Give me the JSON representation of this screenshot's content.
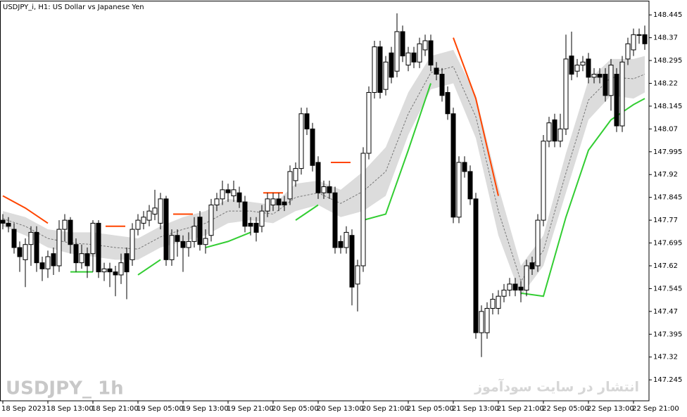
{
  "chart_data": {
    "type": "candlestick",
    "title": "USDJPY_i, H1:  US Dollar vs Japanese Yen",
    "watermark": "USDJPY_ 1h",
    "site_watermark": "انتشار در سایت سودآموز",
    "categories": [
      "18 Sep 2023",
      null,
      null,
      null,
      null,
      null,
      null,
      null,
      "18 Sep 13:00",
      null,
      null,
      null,
      null,
      null,
      null,
      null,
      "18 Sep 21:00",
      null,
      null,
      null,
      null,
      null,
      null,
      null,
      "19 Sep 05:00",
      null,
      null,
      null,
      null,
      null,
      null,
      null,
      "19 Sep 13:00",
      null,
      null,
      null,
      null,
      null,
      null,
      null,
      "19 Sep 21:00",
      null,
      null,
      null,
      null,
      null,
      null,
      null,
      "20 Sep 05:00",
      null,
      null,
      null,
      null,
      null,
      null,
      null,
      "20 Sep 13:00",
      null,
      null,
      null,
      null,
      null,
      null,
      null,
      "20 Sep 21:00",
      null,
      null,
      null,
      null,
      null,
      null,
      null,
      "21 Sep 05:00",
      null,
      null,
      null,
      null,
      null,
      null,
      null,
      "21 Sep 13:00",
      null,
      null,
      null,
      null,
      null,
      null,
      null,
      "21 Sep 21:00",
      null,
      null,
      null,
      null,
      null,
      null,
      null,
      "22 Sep 05:00",
      null,
      null,
      null,
      null,
      null,
      null,
      null,
      "22 Sep 13:00",
      null,
      null,
      null,
      null,
      null,
      null,
      null,
      "22 Sep 21:00",
      null,
      null
    ],
    "open": [
      147.77,
      147.76,
      147.74,
      147.68,
      147.64,
      147.69,
      147.73,
      147.63,
      147.61,
      147.66,
      147.62,
      147.74,
      147.77,
      147.69,
      147.63,
      147.66,
      147.66,
      147.76,
      147.6,
      147.61,
      147.6,
      147.59,
      147.66,
      147.64,
      147.74,
      147.76,
      147.77,
      147.79,
      147.76,
      147.84,
      147.64,
      147.72,
      147.7,
      147.68,
      147.7,
      147.78,
      147.69,
      147.72,
      147.82,
      147.84,
      147.87,
      147.85,
      147.86,
      147.83,
      147.76,
      147.76,
      147.75,
      147.8,
      147.82,
      147.84,
      147.83,
      147.84,
      147.9,
      147.94,
      148.12,
      148.07,
      147.96,
      147.86,
      147.88,
      147.86,
      147.7,
      147.68,
      147.72,
      147.56,
      147.62,
      147.99,
      148.19,
      148.34,
      148.2,
      148.32,
      148.26,
      148.39,
      148.28,
      148.32,
      148.29,
      148.33,
      148.36,
      148.27,
      148.25,
      148.19,
      148.12,
      147.78,
      147.96,
      147.93,
      147.84,
      147.4,
      147.4,
      147.48,
      147.48,
      147.52,
      147.54,
      147.56,
      147.55,
      147.54,
      147.63,
      147.62,
      147.77,
      148.03,
      148.1,
      148.03,
      148.07,
      148.31,
      148.26,
      148.28,
      148.3,
      148.24,
      148.25,
      148.25,
      148.18,
      148.25,
      148.08,
      148.3,
      148.33,
      148.38,
      148.38
    ],
    "high": [
      147.79,
      147.78,
      147.76,
      147.7,
      147.71,
      147.75,
      147.75,
      147.65,
      147.67,
      147.68,
      147.77,
      147.79,
      147.78,
      147.71,
      147.69,
      147.68,
      147.77,
      147.77,
      147.63,
      147.63,
      147.62,
      147.66,
      147.68,
      147.76,
      147.79,
      147.8,
      147.82,
      147.87,
      147.86,
      147.85,
      147.74,
      147.74,
      147.72,
      147.73,
      147.78,
      147.8,
      147.74,
      147.84,
      147.86,
      147.9,
      147.89,
      147.9,
      147.88,
      147.85,
      147.78,
      147.78,
      147.82,
      147.86,
      147.86,
      147.86,
      147.85,
      147.95,
      147.96,
      148.14,
      148.14,
      148.09,
      147.98,
      147.9,
      147.9,
      147.88,
      147.72,
      147.75,
      147.74,
      147.64,
      148.01,
      148.21,
      148.36,
      148.36,
      148.31,
      148.34,
      148.45,
      148.41,
      148.34,
      148.34,
      148.37,
      148.38,
      148.38,
      148.29,
      148.27,
      148.21,
      148.14,
      147.98,
      147.98,
      147.95,
      147.86,
      147.49,
      147.5,
      147.53,
      147.54,
      147.56,
      147.58,
      147.58,
      147.57,
      147.64,
      147.65,
      147.79,
      148.05,
      148.11,
      148.12,
      148.12,
      148.38,
      148.39,
      148.3,
      148.31,
      148.32,
      148.27,
      148.27,
      148.27,
      148.3,
      148.27,
      148.31,
      148.37,
      148.4,
      148.4,
      148.41
    ],
    "low": [
      147.74,
      147.73,
      147.66,
      147.6,
      147.55,
      147.62,
      147.6,
      147.57,
      147.58,
      147.59,
      147.6,
      147.7,
      147.66,
      147.6,
      147.61,
      147.58,
      147.6,
      147.58,
      147.57,
      147.55,
      147.52,
      147.56,
      147.51,
      147.62,
      147.72,
      147.74,
      147.75,
      147.77,
      147.74,
      147.62,
      147.62,
      147.65,
      147.6,
      147.65,
      147.68,
      147.67,
      147.66,
      147.7,
      147.8,
      147.82,
      147.83,
      147.83,
      147.81,
      147.73,
      147.72,
      147.7,
      147.73,
      147.78,
      147.8,
      147.8,
      147.8,
      147.82,
      147.88,
      147.92,
      148.05,
      147.93,
      147.84,
      147.84,
      147.84,
      147.66,
      147.66,
      147.66,
      147.49,
      147.47,
      147.6,
      147.97,
      148.17,
      148.17,
      148.18,
      148.22,
      148.24,
      148.29,
      148.26,
      148.27,
      148.27,
      148.31,
      148.26,
      148.23,
      148.16,
      148.1,
      147.76,
      147.76,
      147.91,
      147.82,
      147.38,
      147.32,
      147.38,
      147.46,
      147.46,
      147.5,
      147.52,
      147.52,
      147.5,
      147.52,
      147.59,
      147.6,
      147.75,
      148.01,
      148.01,
      148.01,
      148.05,
      148.23,
      148.24,
      148.26,
      148.22,
      148.22,
      148.22,
      148.16,
      148.13,
      148.06,
      148.06,
      148.28,
      148.31,
      148.35,
      148.33
    ],
    "close": [
      147.76,
      147.75,
      147.68,
      147.65,
      147.69,
      147.73,
      147.63,
      147.61,
      147.65,
      147.62,
      147.74,
      147.77,
      147.69,
      147.63,
      147.66,
      147.62,
      147.76,
      147.6,
      147.61,
      147.6,
      147.59,
      147.63,
      147.6,
      147.74,
      147.77,
      147.78,
      147.8,
      147.81,
      147.84,
      147.64,
      147.72,
      147.7,
      147.68,
      147.7,
      147.75,
      147.69,
      147.71,
      147.82,
      147.84,
      147.87,
      147.86,
      147.87,
      147.83,
      147.75,
      147.75,
      147.73,
      147.8,
      147.84,
      147.84,
      147.82,
      147.82,
      147.93,
      147.94,
      148.12,
      148.07,
      147.95,
      147.86,
      147.88,
      147.86,
      147.68,
      147.68,
      147.73,
      147.55,
      147.62,
      147.99,
      148.19,
      148.34,
      148.19,
      148.29,
      148.24,
      148.39,
      148.31,
      148.32,
      148.29,
      148.35,
      148.36,
      148.28,
      148.25,
      148.18,
      148.12,
      147.78,
      147.96,
      147.93,
      147.84,
      147.4,
      147.47,
      147.48,
      147.51,
      147.52,
      147.54,
      147.56,
      147.54,
      147.54,
      147.62,
      147.61,
      147.77,
      148.03,
      148.09,
      148.03,
      148.07,
      148.3,
      148.25,
      148.28,
      148.29,
      148.24,
      148.25,
      148.24,
      148.18,
      148.28,
      148.08,
      148.29,
      148.35,
      148.38,
      148.38,
      148.35
    ],
    "bands": {
      "fill": "#dcdcdc",
      "x": [
        0,
        4,
        8,
        12,
        16,
        20,
        24,
        28,
        32,
        36,
        40,
        44,
        48,
        52,
        56,
        60,
        64,
        68,
        72,
        76,
        80,
        84,
        88,
        92,
        96,
        100,
        104,
        108,
        112,
        114
      ],
      "upper": [
        147.8,
        147.78,
        147.74,
        147.73,
        147.73,
        147.72,
        147.71,
        147.75,
        147.78,
        147.8,
        147.84,
        147.83,
        147.82,
        147.89,
        147.9,
        147.87,
        147.93,
        148.01,
        148.19,
        148.31,
        148.33,
        148.18,
        147.88,
        147.62,
        147.72,
        147.99,
        148.23,
        148.3,
        148.3,
        148.31
      ],
      "middle": [
        147.775,
        147.75,
        147.71,
        147.695,
        147.69,
        147.68,
        147.675,
        147.715,
        147.74,
        147.76,
        147.8,
        147.8,
        147.79,
        147.845,
        147.86,
        147.825,
        147.865,
        147.93,
        148.12,
        148.255,
        148.275,
        148.11,
        147.8,
        147.57,
        147.67,
        147.925,
        148.165,
        148.24,
        148.235,
        148.25
      ],
      "lower": [
        147.75,
        147.72,
        147.68,
        147.66,
        147.65,
        147.64,
        147.64,
        147.68,
        147.7,
        147.72,
        147.76,
        147.77,
        147.76,
        147.8,
        147.82,
        147.78,
        147.8,
        147.85,
        148.05,
        148.2,
        148.22,
        148.04,
        147.72,
        147.52,
        147.62,
        147.86,
        148.1,
        148.18,
        148.17,
        148.19
      ]
    },
    "trend": [
      {
        "color": "#ff4500",
        "values": [
          147.85,
          147.81,
          147.76,
          null,
          null,
          147.75,
          null,
          null,
          147.79,
          null,
          null,
          null,
          147.86,
          null,
          null,
          147.96,
          null,
          null,
          null,
          null,
          148.37,
          148.17,
          147.85,
          null,
          null,
          null,
          null,
          null,
          null,
          null
        ]
      },
      {
        "color": "#32cd32",
        "values": [
          null,
          null,
          null,
          147.6,
          147.6,
          null,
          147.59,
          147.64,
          null,
          147.68,
          147.7,
          147.73,
          null,
          147.77,
          147.82,
          null,
          147.77,
          147.79,
          148.0,
          148.22,
          null,
          null,
          null,
          147.53,
          147.52,
          147.78,
          148.0,
          148.1,
          148.15,
          148.17
        ]
      }
    ],
    "ylim": [
      147.176,
      148.494
    ],
    "yticks": [
      147.245,
      147.32,
      147.395,
      147.47,
      147.545,
      147.62,
      147.695,
      147.77,
      147.845,
      147.92,
      147.995,
      148.07,
      148.145,
      148.22,
      148.295,
      148.37,
      148.445
    ]
  }
}
